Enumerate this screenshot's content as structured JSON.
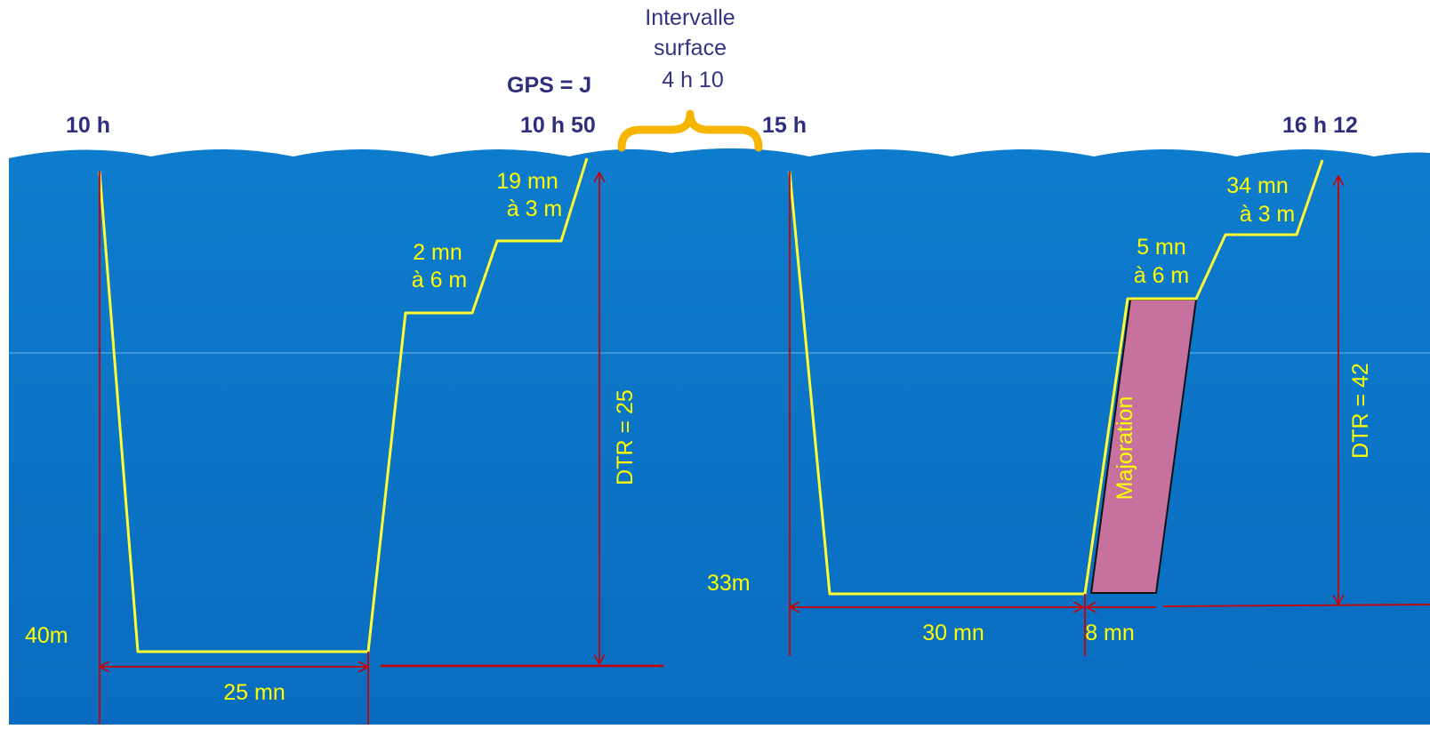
{
  "colors": {
    "sea_top": "#0d78c8",
    "sea_bottom": "#0a6fc2",
    "profile": "#ffff33",
    "measure": "#cc0000",
    "majoration_fill": "#c7719e",
    "brace": "#f7b500",
    "label_dark": "#2e2e7c",
    "label_light": "#ffff00"
  },
  "surface_interval": {
    "line1": "Intervalle",
    "line2": "surface",
    "line3": "4 h 10",
    "brace_icon": "curly-brace"
  },
  "dive1": {
    "start_time": "10 h",
    "end_time": "10 h 50",
    "gps": "GPS = J",
    "depth": "40m",
    "bottom_time": "25 mn",
    "stop_6m_line1": "2 mn",
    "stop_6m_line2": "à 6 m",
    "stop_3m_line1": "19 mn",
    "stop_3m_line2": "à 3 m",
    "dtr": "DTR = 25"
  },
  "dive2": {
    "start_time": "15 h",
    "end_time": "16 h 12",
    "depth": "33m",
    "bottom_time": "30 mn",
    "majoration_time": "8 mn",
    "majoration_label": "Majoration",
    "stop_6m_line1": "5 mn",
    "stop_6m_line2": "à 6 m",
    "stop_3m_line1": "34 mn",
    "stop_3m_line2": "à 3 m",
    "dtr": "DTR = 42"
  }
}
